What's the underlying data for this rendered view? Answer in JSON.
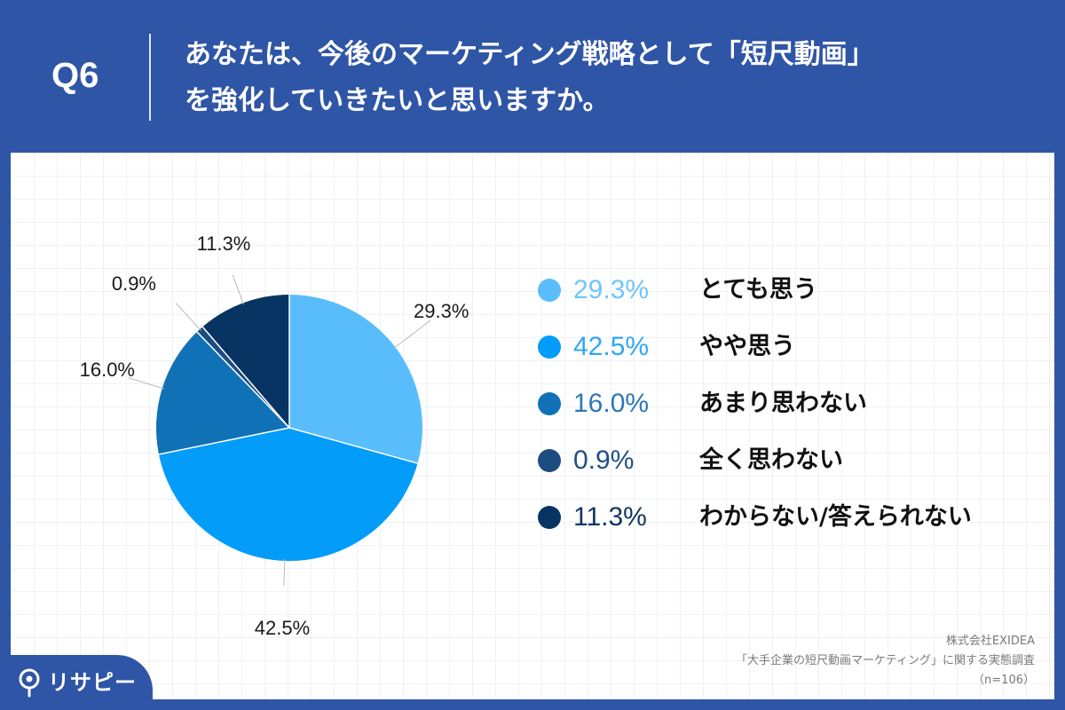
{
  "header": {
    "question_number": "Q6",
    "question_line1": "あなたは、今後のマーケティング戦略として「短尺動画」",
    "question_line2": "を強化していきたいと思いますか。"
  },
  "chart_data": {
    "type": "pie",
    "title": "",
    "start_angle_deg": 0,
    "direction": "clockwise",
    "slices": [
      {
        "label": "とても思う",
        "value": 29.3,
        "display": "29.3%",
        "color": "#59bdfc"
      },
      {
        "label": "やや思う",
        "value": 42.5,
        "display": "42.5%",
        "color": "#039cf9"
      },
      {
        "label": "あまり思わない",
        "value": 16.0,
        "display": "16.0%",
        "color": "#1171b6"
      },
      {
        "label": "全く思わない",
        "value": 0.9,
        "display": "0.9%",
        "color": "#1d4c80"
      },
      {
        "label": "わからない/答えられない",
        "value": 11.3,
        "display": "11.3%",
        "color": "#073463"
      }
    ],
    "legend_position": "right"
  },
  "legend_value_colors": [
    "#6ec6fb",
    "#2fa6f6",
    "#2e76b6",
    "#1f4f86",
    "#12355f"
  ],
  "source": {
    "company": "株式会社EXIDEA",
    "survey": "「大手企業の短尺動画マーケティング」に関する実態調査",
    "sample": "（n=106）"
  },
  "logo": {
    "text": "リサピー",
    "icon": "map-pin-icon"
  }
}
